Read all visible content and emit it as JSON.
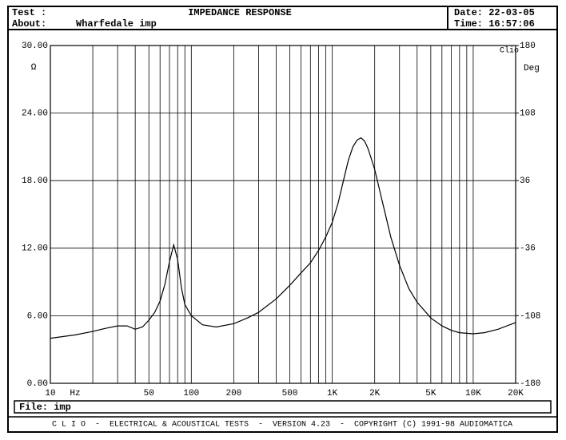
{
  "header": {
    "test_label": "Test :",
    "about_label": "About:",
    "about": "Wharfedale imp",
    "title": "IMPEDANCE RESPONSE",
    "date": "Date: 22-03-05",
    "time": "Time: 16:57:06"
  },
  "footer": {
    "file": "File: imp",
    "banner": "C L I O  -  ELECTRICAL & ACOUSTICAL TESTS  -  VERSION 4.23  -  COPYRIGHT (C) 1991-98 AUDIOMATICA"
  },
  "chart_data": {
    "type": "line",
    "xscale": "log",
    "color": "#000000",
    "ylabel": "Ω",
    "y2label": "Deg",
    "xunit": "Hz",
    "brand": "Clio",
    "grid": true,
    "xlim": [
      10,
      20000
    ],
    "ylim": [
      0,
      30
    ],
    "y2lim": [
      -180,
      180
    ],
    "xticks": [
      10,
      50,
      100,
      200,
      500,
      {
        "value": 1000,
        "label": "1K"
      },
      {
        "value": 2000,
        "label": "2K"
      },
      {
        "value": 5000,
        "label": "5K"
      },
      {
        "value": 10000,
        "label": "10K"
      },
      {
        "value": 20000,
        "label": "20K"
      }
    ],
    "xgrid": [
      20,
      30,
      40,
      60,
      70,
      80,
      90,
      300,
      400,
      600,
      700,
      800,
      900,
      3000,
      4000,
      6000,
      7000,
      8000,
      9000
    ],
    "yticks": [
      {
        "value": 0,
        "label": "0.00"
      },
      {
        "value": 6,
        "label": "6.00"
      },
      {
        "value": 12,
        "label": "12.00"
      },
      {
        "value": 18,
        "label": "18.00"
      },
      {
        "value": 24,
        "label": "24.00"
      },
      {
        "value": 30,
        "label": "30.00"
      }
    ],
    "y2ticks": [
      -180,
      -108,
      -36,
      36,
      108,
      180
    ],
    "x": [
      10,
      15,
      20,
      25,
      30,
      35,
      40,
      45,
      50,
      55,
      60,
      65,
      70,
      75,
      80,
      85,
      90,
      100,
      120,
      150,
      200,
      250,
      300,
      400,
      500,
      600,
      700,
      800,
      900,
      1000,
      1100,
      1200,
      1300,
      1400,
      1500,
      1600,
      1700,
      1800,
      2000,
      2300,
      2600,
      3000,
      3500,
      4000,
      5000,
      6000,
      7000,
      8000,
      10000,
      12000,
      15000,
      20000
    ],
    "values": [
      4.0,
      4.3,
      4.6,
      4.9,
      5.1,
      5.1,
      4.8,
      5.0,
      5.6,
      6.3,
      7.3,
      8.8,
      10.8,
      12.3,
      11.0,
      8.5,
      7.0,
      6.0,
      5.2,
      5.0,
      5.3,
      5.8,
      6.3,
      7.5,
      8.7,
      9.8,
      10.7,
      11.8,
      13.0,
      14.3,
      16.0,
      18.0,
      19.8,
      21.0,
      21.6,
      21.8,
      21.5,
      20.8,
      19.0,
      15.8,
      13.0,
      10.5,
      8.4,
      7.2,
      5.8,
      5.1,
      4.7,
      4.5,
      4.4,
      4.5,
      4.8,
      5.4
    ]
  }
}
